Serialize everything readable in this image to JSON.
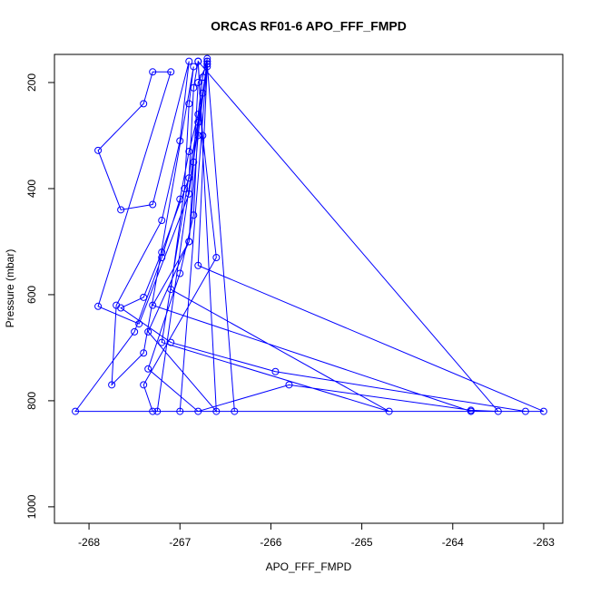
{
  "chart_data": {
    "type": "line",
    "title": "ORCAS RF01-6 APO_FFF_FMPD",
    "x_label": "APO_FFF_FMPD",
    "y_label": "Pressure (mbar)",
    "xlim": [
      -268.38,
      -262.79
    ],
    "xticks": [
      -268,
      -267,
      -266,
      -265,
      -264,
      -263
    ],
    "ylim": [
      1031,
      147
    ],
    "yticks": [
      200,
      400,
      600,
      800,
      1000
    ],
    "series": [
      {
        "color": "#0000ff",
        "x": [
          -266.7,
          -266.75,
          -266.8,
          -266.9,
          -267.0,
          -267.2,
          -267.5,
          -268.15,
          -267.25,
          -266.7,
          -266.8,
          -266.9,
          -267.3,
          -263.8,
          -263.0,
          -266.8,
          -266.7,
          -266.75,
          -266.9,
          -267.45,
          -267.9,
          -267.1,
          -267.3,
          -267.4,
          -267.9,
          -267.65,
          -267.3,
          -266.9,
          -267.0,
          -267.2,
          -267.7,
          -267.75,
          -267.4,
          -266.85,
          -266.9,
          -266.95,
          -267.1,
          -264.7,
          -267.2,
          -266.7,
          -266.8,
          -266.85,
          -266.9,
          -267.35,
          -266.6,
          -266.8,
          -266.75,
          -266.6,
          -267.4,
          -267.3,
          -266.4,
          -266.7,
          -266.8,
          -266.85,
          -267.0,
          -267.35,
          -266.8,
          -265.8,
          -263.8,
          -263.5,
          -266.8,
          -266.85,
          -266.9,
          -267.2,
          -267.4,
          -267.65,
          -267.1,
          -265.95,
          -263.2,
          -267.0,
          -266.7
        ],
        "values": [
          155,
          190,
          260,
          330,
          420,
          530,
          670,
          820,
          820,
          160,
          300,
          500,
          620,
          820,
          820,
          545,
          170,
          220,
          410,
          655,
          622,
          180,
          180,
          240,
          328,
          440,
          430,
          160,
          310,
          460,
          620,
          770,
          710,
          170,
          240,
          400,
          590,
          820,
          690,
          165,
          200,
          350,
          500,
          670,
          820,
          160,
          300,
          530,
          770,
          820,
          820,
          165,
          275,
          450,
          560,
          740,
          820,
          770,
          818,
          820,
          160,
          210,
          380,
          520,
          605,
          625,
          690,
          745,
          820,
          820,
          160
        ]
      }
    ]
  }
}
